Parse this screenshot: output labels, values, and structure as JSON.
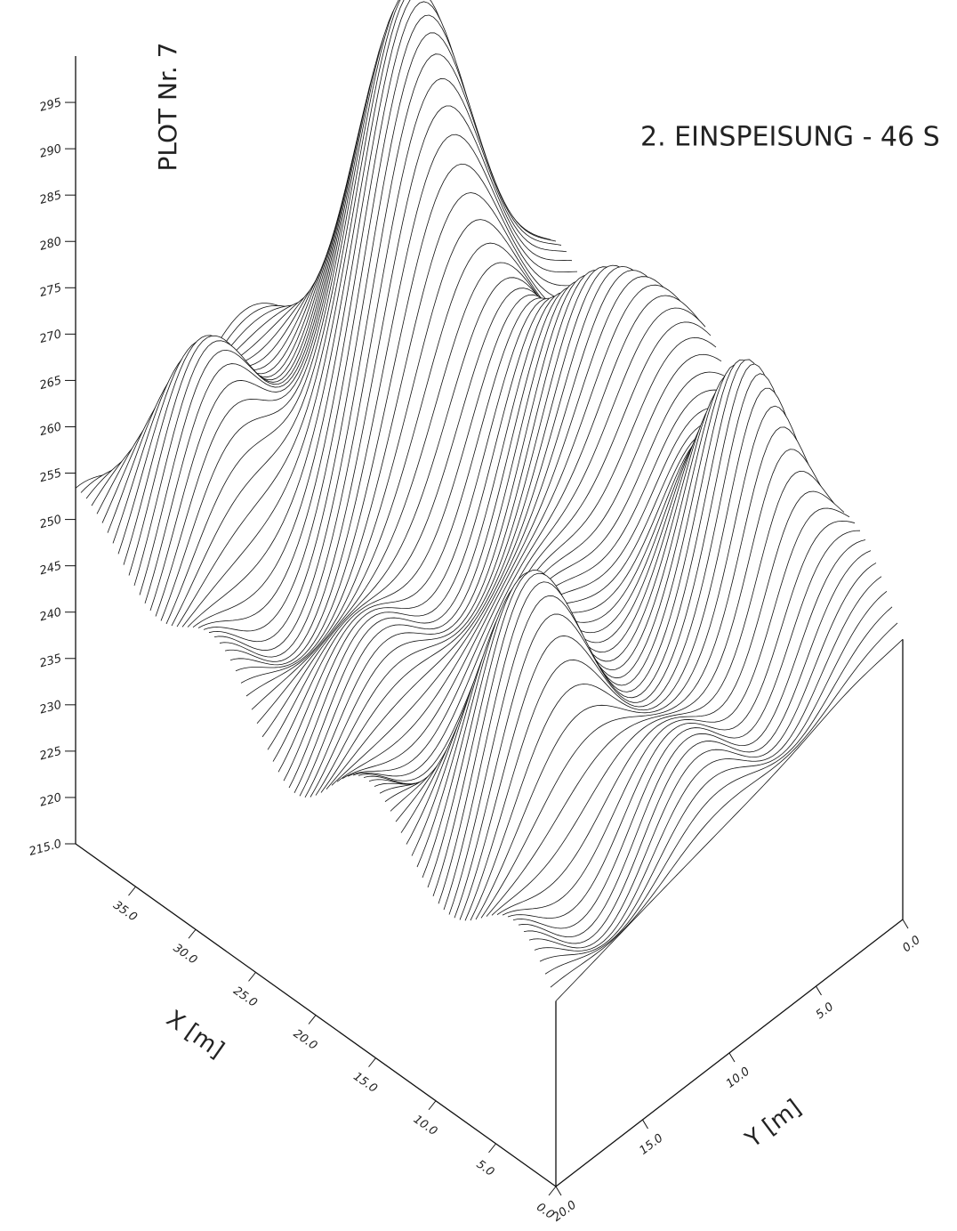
{
  "chart_data": {
    "type": "surface3d",
    "title": "2. EINSPEISUNG - 46 S",
    "plot_label": "PLOT Nr. 7",
    "x_label": "X [m]",
    "y_label": "Y [m]",
    "xlim": [
      0,
      40
    ],
    "ylim": [
      0,
      20
    ],
    "zlim": [
      215,
      300
    ],
    "xticks": [
      {
        "value": 35,
        "label": "35.0"
      },
      {
        "value": 30,
        "label": "30.0"
      },
      {
        "value": 25,
        "label": "25.0"
      },
      {
        "value": 20,
        "label": "20.0"
      },
      {
        "value": 15,
        "label": "15.0"
      },
      {
        "value": 10,
        "label": "10.0"
      },
      {
        "value": 5,
        "label": "5.0"
      },
      {
        "value": 0,
        "label": "0.0"
      }
    ],
    "yticks": [
      {
        "value": 20,
        "label": "20.0"
      },
      {
        "value": 15,
        "label": "15.0"
      },
      {
        "value": 10,
        "label": "10.0"
      },
      {
        "value": 5,
        "label": "5.0"
      },
      {
        "value": 0,
        "label": "0.0"
      }
    ],
    "zticks": [
      {
        "value": 215,
        "label": "215.0"
      },
      220,
      225,
      230,
      235,
      240,
      245,
      250,
      255,
      260,
      265,
      270,
      275,
      280,
      285,
      290,
      295
    ]
  }
}
